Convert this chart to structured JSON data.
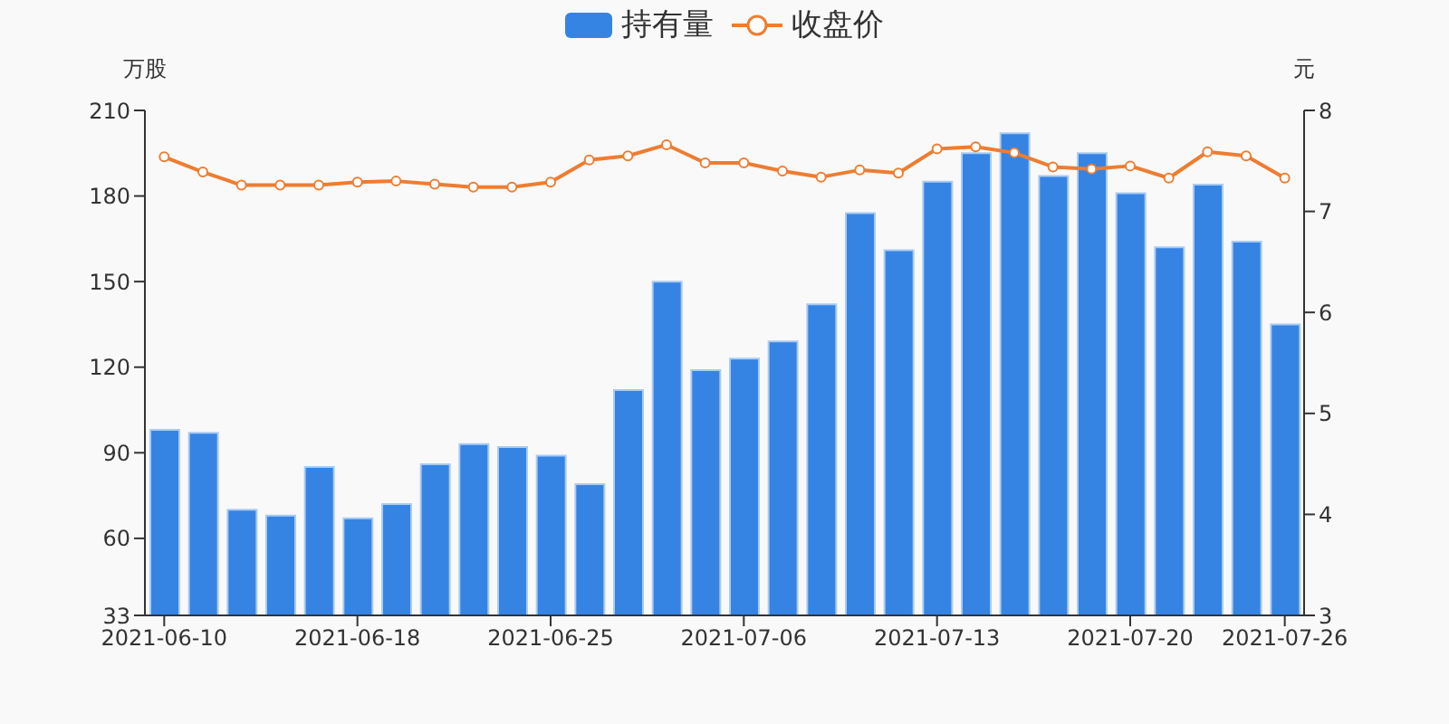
{
  "chart_data": {
    "type": "bar",
    "categories": [
      "2021-06-10",
      null,
      null,
      null,
      null,
      "2021-06-18",
      null,
      null,
      null,
      null,
      "2021-06-25",
      null,
      null,
      null,
      null,
      "2021-07-06",
      null,
      null,
      null,
      null,
      "2021-07-13",
      null,
      null,
      null,
      null,
      "2021-07-20",
      null,
      null,
      null,
      "2021-07-26"
    ],
    "ylabel": "万股",
    "y2label": "元",
    "ylim": [
      33,
      210
    ],
    "yticks": [
      33,
      60,
      90,
      120,
      150,
      180,
      210
    ],
    "y2lim": [
      3,
      8
    ],
    "y2ticks": [
      3,
      4,
      5,
      6,
      7,
      8
    ],
    "legend": "top",
    "marker": "circle",
    "series": [
      {
        "name": "持有量",
        "color": "#3584e4",
        "values": [
          98,
          97,
          70,
          68,
          85,
          67,
          72,
          86,
          93,
          92,
          89,
          79,
          112,
          150,
          119,
          123,
          129,
          142,
          174,
          161,
          185,
          195,
          202,
          187,
          195,
          181,
          162,
          184,
          164,
          135
        ]
      },
      {
        "name": "收盘价",
        "type": "line",
        "axis": "y2",
        "color": "#ee7d31",
        "values": [
          7.54,
          7.39,
          7.26,
          7.26,
          7.26,
          7.29,
          7.3,
          7.27,
          7.24,
          7.24,
          7.29,
          7.51,
          7.55,
          7.66,
          7.48,
          7.48,
          7.4,
          7.34,
          7.41,
          7.38,
          7.62,
          7.64,
          7.58,
          7.44,
          7.42,
          7.45,
          7.33,
          7.59,
          7.55,
          7.33
        ]
      }
    ]
  }
}
